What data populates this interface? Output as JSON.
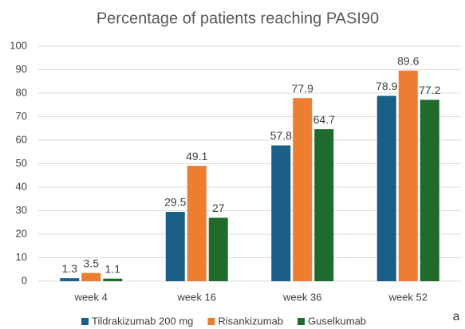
{
  "chart_data": {
    "type": "bar",
    "title": "Percentage of patients reaching PASI90",
    "categories": [
      "week 4",
      "week 16",
      "week 36",
      "week 52"
    ],
    "series": [
      {
        "name": "Tildrakizumab 200 mg",
        "color": "#1b5e86",
        "values": [
          1.3,
          29.5,
          57.8,
          78.9
        ]
      },
      {
        "name": "Risankizumab",
        "color": "#ed7d31",
        "values": [
          3.5,
          49.1,
          77.9,
          89.6
        ]
      },
      {
        "name": "Guselkumab",
        "color": "#1e6b2c",
        "values": [
          1.1,
          27,
          64.7,
          77.2
        ]
      }
    ],
    "ylim": [
      0,
      100
    ],
    "yticks": [
      0,
      10,
      20,
      30,
      40,
      50,
      60,
      70,
      80,
      90,
      100
    ],
    "grid": true,
    "legend": "bottom",
    "annotation": "a"
  }
}
